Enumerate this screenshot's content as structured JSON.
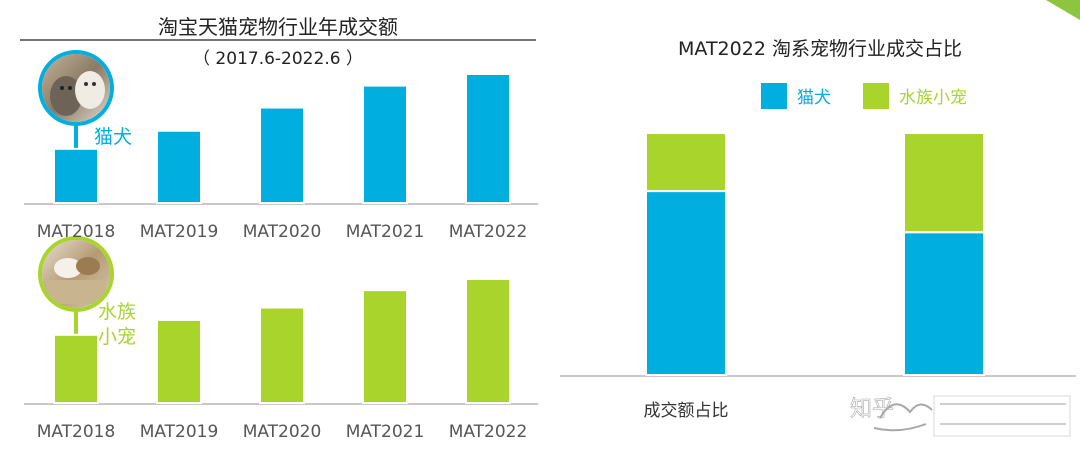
{
  "colors": {
    "cat_dog": "#00aee0",
    "aquatic": "#a9d42c",
    "axis": "#c8c8c8",
    "text": "#222222",
    "tick": "#555555",
    "accent_corner": "#8cc63f"
  },
  "left_panel": {
    "title": "淘宝天猫宠物行业年成交额",
    "subtitle": "（ 2017.6-2022.6 ）",
    "cat_dog_label": "猫犬",
    "aquatic_label_line1": "水族",
    "aquatic_label_line2": "小宠",
    "cat_dog_icon": "cat-dog-photo-icon",
    "aquatic_icon": "small-pet-photo-icon"
  },
  "right_panel": {
    "title": "MAT2022 淘系宠物行业成交占比"
  },
  "watermark": {
    "text": "知乎",
    "logo_icon": "creative-logo-icon"
  },
  "chart_data": [
    {
      "type": "bar",
      "name": "cat-dog-gmv",
      "categories": [
        "MAT2018",
        "MAT2019",
        "MAT2020",
        "MAT2021",
        "MAT2022"
      ],
      "series": [
        {
          "name": "猫犬",
          "values": [
            0.42,
            0.56,
            0.74,
            0.91,
            1.0
          ]
        }
      ],
      "ylim": [
        0,
        1.0
      ],
      "grid": false,
      "color": "#00aee0"
    },
    {
      "type": "bar",
      "name": "aquatic-small-pet-gmv",
      "categories": [
        "MAT2018",
        "MAT2019",
        "MAT2020",
        "MAT2021",
        "MAT2022"
      ],
      "series": [
        {
          "name": "水族小宠",
          "values": [
            0.55,
            0.67,
            0.77,
            0.91,
            1.0
          ]
        }
      ],
      "ylim": [
        0,
        1.0
      ],
      "grid": false,
      "color": "#a9d42c"
    },
    {
      "type": "bar",
      "stacked": true,
      "name": "share-stacked",
      "categories": [
        "成交额占比",
        ""
      ],
      "series": [
        {
          "name": "猫犬",
          "values": [
            76,
            59
          ]
        },
        {
          "name": "水族小宠",
          "values": [
            24,
            41
          ]
        }
      ],
      "legend": "top",
      "ylim": [
        0,
        100
      ],
      "grid": false
    }
  ]
}
